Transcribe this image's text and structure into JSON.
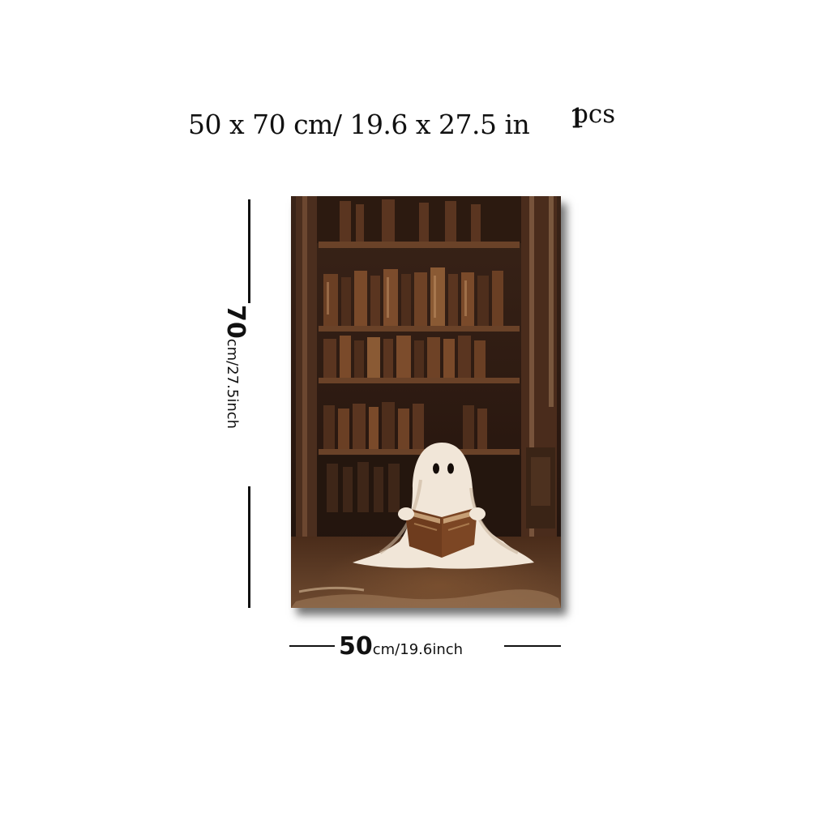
{
  "headline": {
    "dimensions": "50 x 70 cm/ 19.6 x 27.5 in",
    "quantity_number": "1",
    "quantity_unit": "pcs"
  },
  "height_label": {
    "value": "70",
    "unit": "cm/27.5inch"
  },
  "width_label": {
    "value": "50",
    "unit": "cm/19.6inch"
  },
  "colors": {
    "background": "#ffffff",
    "text": "#111111",
    "bookcase_dark": "#2a1b12",
    "wood_mid": "#5a3520",
    "wood_light": "#8a5a34",
    "ghost": "#f1e6d8"
  },
  "icons": {
    "artwork": "ghost-reading-book-painting"
  }
}
